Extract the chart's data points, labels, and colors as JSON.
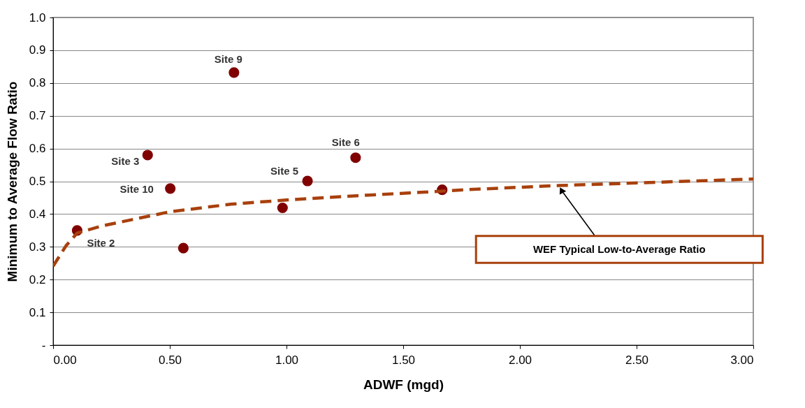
{
  "chart_data": {
    "type": "scatter",
    "xlabel": "ADWF (mgd)",
    "ylabel": "Minimum to Average  Flow Ratio",
    "xlim": [
      0,
      3
    ],
    "xticks": [
      {
        "value": 0,
        "label": "0.00"
      },
      {
        "value": 0.5,
        "label": "0.50"
      },
      {
        "value": 1,
        "label": "1.00"
      },
      {
        "value": 1.5,
        "label": "1.50"
      },
      {
        "value": 2,
        "label": "2.00"
      },
      {
        "value": 2.5,
        "label": "2.50"
      },
      {
        "value": 3,
        "label": "3.00"
      }
    ],
    "ylim": [
      0,
      1
    ],
    "yticks": [
      {
        "value": 0,
        "label": "-"
      },
      0.1,
      0.2,
      0.3,
      0.4,
      0.5,
      0.6,
      0.7,
      0.8,
      0.9,
      {
        "value": 1,
        "label": "1.0"
      }
    ],
    "grid": "y",
    "series": [
      {
        "color": "#800000",
        "marker": "circle",
        "x": [
          0.103,
          0.405,
          0.502,
          0.558,
          0.775,
          0.983,
          1.09,
          1.296,
          1.667
        ],
        "values": [
          0.35,
          0.58,
          0.478,
          0.296,
          0.832,
          0.419,
          0.501,
          0.572,
          0.474
        ]
      },
      {
        "type": "line",
        "name": "WEF Typical Low-to-Average Ratio",
        "color": "#a8400c",
        "line_style": "dashed",
        "marker": "none",
        "x": [
          0,
          0.056,
          0.103,
          0.204,
          0.5,
          0.761,
          1.0,
          1.355,
          1.62,
          1.757,
          2.166,
          2.46,
          3.0
        ],
        "values": [
          0.241,
          0.304,
          0.342,
          0.363,
          0.407,
          0.43,
          0.443,
          0.458,
          0.468,
          0.474,
          0.487,
          0.494,
          0.507
        ]
      }
    ],
    "annotations": [
      {
        "text": "Site 2",
        "x": 0.103,
        "y": 0.35
      },
      {
        "text": "Site 3",
        "x": 0.405,
        "y": 0.58
      },
      {
        "text": "Site 10",
        "x": 0.502,
        "y": 0.478
      },
      {
        "text": "Site 9",
        "x": 0.775,
        "y": 0.832
      },
      {
        "text": "Site 5",
        "x": 1.09,
        "y": 0.501
      },
      {
        "text": "Site 6",
        "x": 1.296,
        "y": 0.572
      }
    ]
  }
}
